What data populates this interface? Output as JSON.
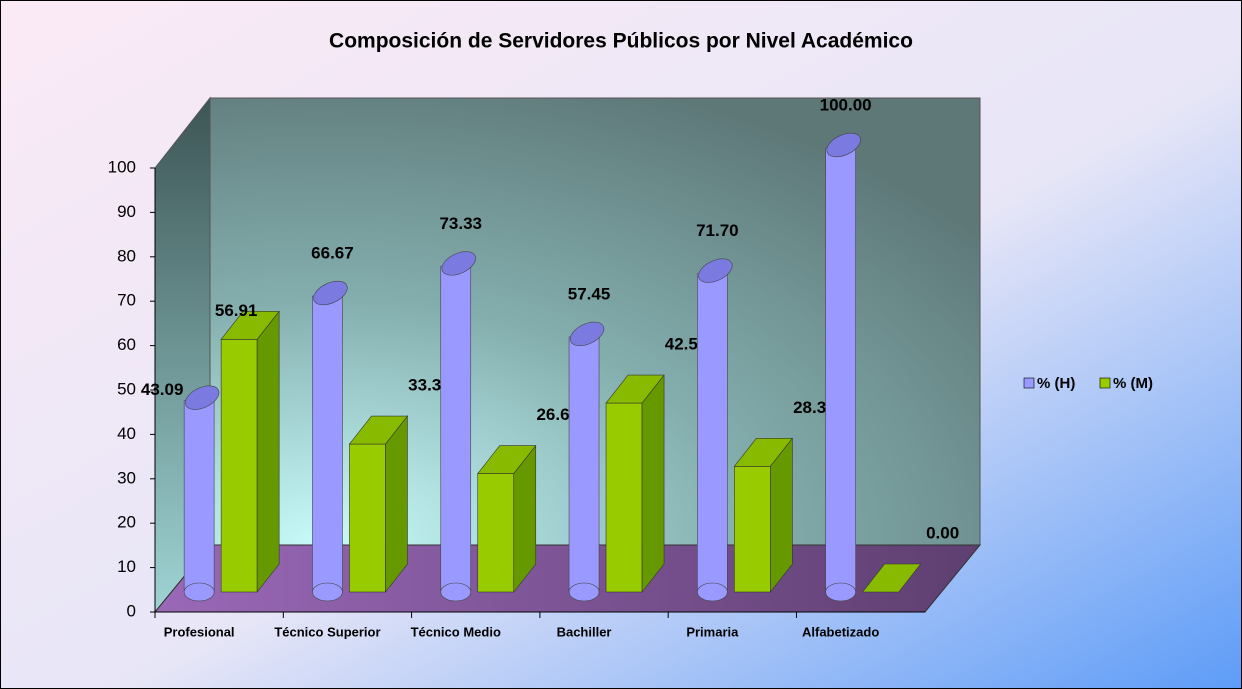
{
  "chart_data": {
    "type": "bar3d",
    "title": "Composición de Servidores Públicos por Nivel Académico",
    "categories": [
      "Profesional",
      "Técnico Superior",
      "Técnico Medio",
      "Bachiller",
      "Primaria",
      "Alfabetizado"
    ],
    "series": [
      {
        "name": "% (H)",
        "color": "#9999ff",
        "values": [
          43.09,
          66.67,
          73.33,
          57.45,
          71.7,
          100.0
        ],
        "value_labels": [
          "43.09",
          "66.67",
          "73.33",
          "57.45",
          "71.70",
          "100.00"
        ]
      },
      {
        "name": "% (M)",
        "color": "#99cc00",
        "values": [
          56.91,
          33.33,
          26.67,
          42.55,
          28.3,
          0.0
        ],
        "value_labels": [
          "56.91",
          "33.33",
          "26.67",
          "42.55",
          "28.30",
          "0.00"
        ]
      }
    ],
    "ylim": [
      0,
      100
    ],
    "yticks": [
      0,
      10,
      20,
      30,
      40,
      50,
      60,
      70,
      80,
      90,
      100
    ],
    "legend": "right"
  }
}
